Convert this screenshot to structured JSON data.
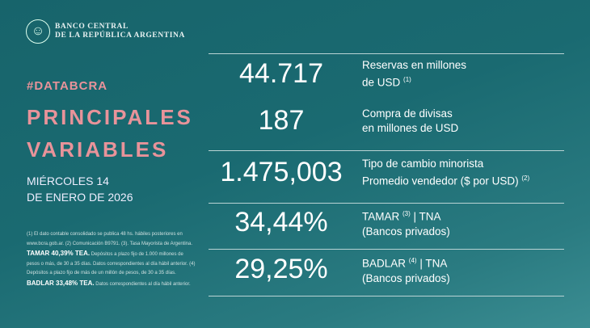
{
  "brand": {
    "line1": "BANCO CENTRAL",
    "line2": "DE LA REPÚBLICA ARGENTINA"
  },
  "hashtag": "#DATABCRA",
  "title": {
    "line1": "PRINCIPALES",
    "line2": "VARIABLES"
  },
  "date": {
    "line1": "MIÉRCOLES 14",
    "line2": "DE ENERO DE 2026"
  },
  "notes": {
    "p1": "(1) El dato contable consolidado se publica 48 hs. hábiles posteriores en www.bcra.gob.ar. (2) Comunicación B9791. (3). Tasa Mayorista de Argentina. ",
    "b1": "TAMAR 40,39% TEA.",
    "p2": " Depósitos a plazo fijo de 1.000 millones de pesos o más, de 30 a 35 días. Datos correspondientes al día hábil anterior. (4) Depósitos a plazo fijo de más de un millón de pesos, de 30 a 35 días. ",
    "b2": "BADLAR 33,48% TEA.",
    "p3": " Datos correspondientes al día hábil anterior."
  },
  "variables": [
    {
      "value": "44.717",
      "label1": "Reservas en millones",
      "label2": "de USD",
      "sup": "(1)"
    },
    {
      "value": "187",
      "label1": "Compra de divisas",
      "label2": "en millones de USD",
      "sup": ""
    },
    {
      "value": "1.475,003",
      "label1": "Tipo de cambio minorista",
      "label2": "Promedio vendedor ($ por USD)",
      "sup": "(2)"
    },
    {
      "value": "34,44%",
      "label1a": "TAMAR",
      "sup": "(3)",
      "label1b": " | TNA",
      "label2": "(Bancos privados)"
    },
    {
      "value": "29,25%",
      "label1a": "BADLAR",
      "sup": "(4)",
      "label1b": " | TNA",
      "label2": "(Bancos privados)"
    }
  ]
}
